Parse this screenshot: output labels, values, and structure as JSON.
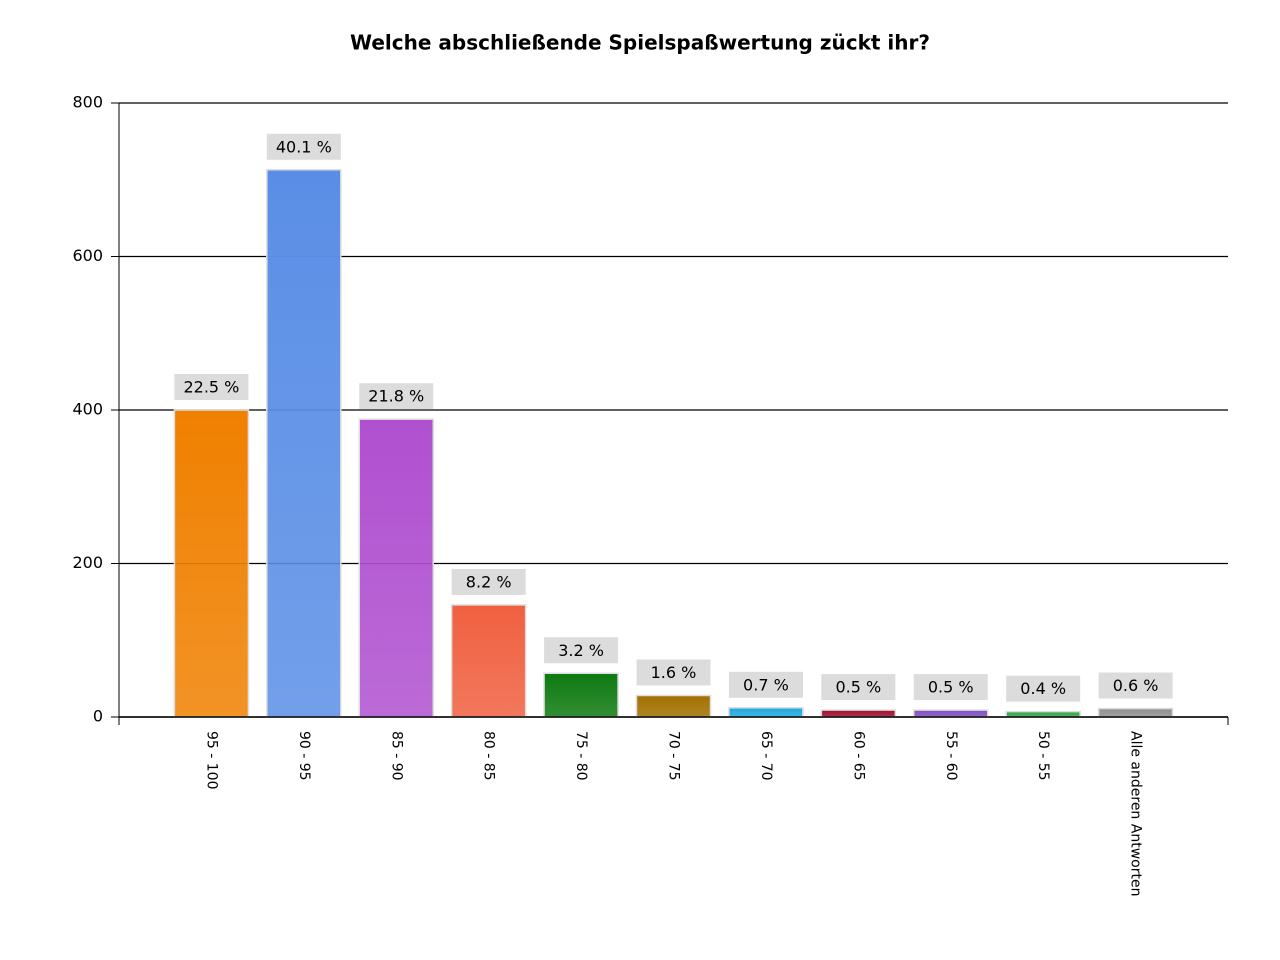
{
  "chart_data": {
    "type": "bar",
    "title": "Welche abschließende Spielspaßwertung zückt ihr?",
    "categories": [
      "95 - 100",
      "90 - 95",
      "85 - 90",
      "80 - 85",
      "75 - 80",
      "70 - 75",
      "65 - 70",
      "60 - 65",
      "55 - 60",
      "50 - 55",
      "Alle anderen Antworten"
    ],
    "values": [
      400,
      713,
      388,
      146,
      57,
      28,
      12,
      9,
      9,
      7,
      11
    ],
    "value_labels": [
      "22.5 %",
      "40.1 %",
      "21.8 %",
      "8.2 %",
      "3.2 %",
      "1.6 %",
      "0.7 %",
      "0.5 %",
      "0.5 %",
      "0.4 %",
      "0.6 %"
    ],
    "colors": [
      "#f08000",
      "#5a8ee6",
      "#b050d0",
      "#f06040",
      "#0e7a10",
      "#a07000",
      "#20a8e0",
      "#a01030",
      "#8050c0",
      "#30a848",
      "#909090"
    ],
    "ylim": [
      0,
      800
    ],
    "yticks": [
      0,
      200,
      400,
      600,
      800
    ],
    "grid": true
  }
}
